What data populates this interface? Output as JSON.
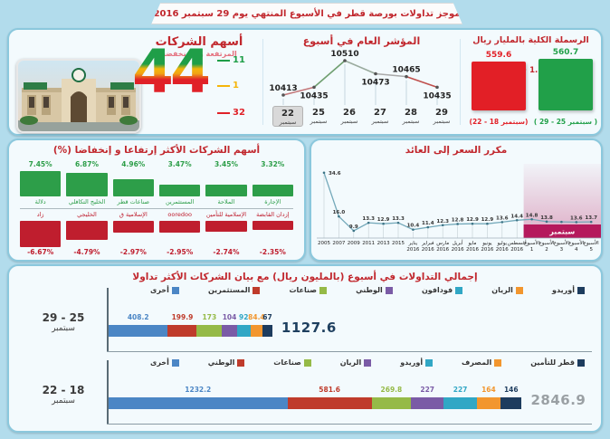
{
  "page_title": "موجز تداولات بورصة قطر في الأسبوع المنتهي يوم 29 سبتمبر 2016",
  "top_panel": {
    "shares": {
      "title": "أسهم الشركات",
      "subtitle": "المرتفعة و المنخفضة",
      "total": "44",
      "callouts": [
        {
          "label": "11",
          "color": "#1f9e48"
        },
        {
          "label": "1",
          "color": "#f5b50a"
        },
        {
          "label": "32",
          "color": "#e02128"
        }
      ]
    },
    "index": {
      "title": "المؤشر العام في أسبوع",
      "line_colors": [
        "#c4787a",
        "#6f9f70",
        "#9aab9e",
        "#a9a9a9",
        "#c0504d"
      ],
      "points": [
        {
          "day": "22",
          "month": "سبتمبر",
          "value": 10413,
          "label": "10413",
          "label_pos": "above",
          "highlight": true
        },
        {
          "day": "25",
          "month": "سبتمبر",
          "value": 10435,
          "label": "10435",
          "label_pos": "below",
          "highlight": false
        },
        {
          "day": "26",
          "month": "سبتمبر",
          "value": 10510,
          "label": "10510",
          "label_pos": "above",
          "highlight": false
        },
        {
          "day": "27",
          "month": "سبتمبر",
          "value": 10473,
          "label": "10473",
          "label_pos": "below",
          "highlight": false
        },
        {
          "day": "28",
          "month": "سبتمبر",
          "value": 10465,
          "label": "10465",
          "label_pos": "above",
          "highlight": false
        },
        {
          "day": "29",
          "month": "سبتمبر",
          "value": 10435,
          "label": "10435",
          "label_pos": "below",
          "highlight": false
        }
      ]
    },
    "capitalization": {
      "title": "الرسملة الكلية بالمليار ريال",
      "delta": "+ 1.11",
      "bars": [
        {
          "value": "559.6",
          "caption": "(22 - 18 سبتمبر)",
          "color": "#e21f26",
          "height": 54
        },
        {
          "value": "560.7",
          "caption": "( 29 - 25 سبتمبر )",
          "color": "#21a049",
          "height": 57
        }
      ]
    }
  },
  "movers": {
    "title": "أسهم الشركات الأكثر إرتفاعا و إنخفاضا (%)",
    "gain_color": "#2d9e49",
    "loss_color": "#bf1e2e",
    "gainers": [
      {
        "name": "دلالة",
        "value": "7.45%",
        "pct": 7.45
      },
      {
        "name": "الخليج التكافلي",
        "value": "6.87%",
        "pct": 6.87
      },
      {
        "name": "صناعات قطر",
        "value": "4.96%",
        "pct": 4.96
      },
      {
        "name": "المستثمرين",
        "value": "3.47%",
        "pct": 3.47
      },
      {
        "name": "الملاحة",
        "value": "3.45%",
        "pct": 3.45
      },
      {
        "name": "الإجارة",
        "value": "3.32%",
        "pct": 3.32
      }
    ],
    "losers": [
      {
        "name": "زاد",
        "value": "-6.67%",
        "pct": -6.67
      },
      {
        "name": "الخليجي",
        "value": "-4.79%",
        "pct": -4.79
      },
      {
        "name": "الإسلامية ق",
        "value": "-2.97%",
        "pct": -2.97
      },
      {
        "name": "ooredoo",
        "value": "-2.95%",
        "pct": -2.95
      },
      {
        "name": "الإسلامية للتأمين",
        "value": "-2.74%",
        "pct": -2.74
      },
      {
        "name": "إزدان القابضة",
        "value": "-2.35%",
        "pct": -2.35
      }
    ]
  },
  "pe": {
    "title": "مكرر السعر إلى العائد",
    "band_label": "سبتمبر",
    "band_color": "#b5195c",
    "band_start_index": 14,
    "points": [
      {
        "l1": "2005",
        "l2": "",
        "value": 34.6,
        "label": "34.6"
      },
      {
        "l1": "2007",
        "l2": "",
        "value": 16.0,
        "label": "16.0"
      },
      {
        "l1": "2009",
        "l2": "",
        "value": 9.9,
        "label": "9.9"
      },
      {
        "l1": "2011",
        "l2": "",
        "value": 13.3,
        "label": "13.3"
      },
      {
        "l1": "2013",
        "l2": "",
        "value": 12.9,
        "label": "12.9"
      },
      {
        "l1": "2015",
        "l2": "",
        "value": 13.3,
        "label": "13.3"
      },
      {
        "l1": "يناير",
        "l2": "2016",
        "value": 10.4,
        "label": "10.4"
      },
      {
        "l1": "فبراير",
        "l2": "2016",
        "value": 11.4,
        "label": "11.4"
      },
      {
        "l1": "مارس",
        "l2": "2016",
        "value": 12.3,
        "label": "12.3"
      },
      {
        "l1": "أبريل",
        "l2": "2016",
        "value": 12.8,
        "label": "12.8"
      },
      {
        "l1": "مايو",
        "l2": "2016",
        "value": 12.9,
        "label": "12.9"
      },
      {
        "l1": "يونيو",
        "l2": "2016",
        "value": 12.9,
        "label": "12.9"
      },
      {
        "l1": "يوليو",
        "l2": "2016",
        "value": 13.6,
        "label": "13.6"
      },
      {
        "l1": "أغسطس",
        "l2": "2016",
        "value": 14.4,
        "label": "14.4"
      },
      {
        "l1": "الأسبوع",
        "l2": "1",
        "value": 14.8,
        "label": "14.8"
      },
      {
        "l1": "الأسبوع",
        "l2": "2",
        "value": 13.8,
        "label": "13.8"
      },
      {
        "l1": "الأسبوع",
        "l2": "3",
        "value": 13.7,
        "label": ""
      },
      {
        "l1": "الأسبوع",
        "l2": "4",
        "value": 13.6,
        "label": "13.6"
      },
      {
        "l1": "الأسبوع",
        "l2": "5",
        "value": 13.7,
        "label": "13.7"
      }
    ]
  },
  "turnover": {
    "title": "إجمالي التداولات في أسبوع (بالمليون ريال) مع بيان الشركات الأكثر تداولا",
    "rows": [
      {
        "range": "29 - 25",
        "month": "سبتمبر",
        "total": "1127.6",
        "total_color": "#1e3f5f",
        "segments": [
          {
            "name": "أخرى",
            "value": "408.2",
            "num": 408.2,
            "color": "#4b86c5"
          },
          {
            "name": "المستثمرين",
            "value": "199.9",
            "num": 199.9,
            "color": "#bf3b2b"
          },
          {
            "name": "صناعات",
            "value": "173",
            "num": 173,
            "color": "#95ba47"
          },
          {
            "name": "الوطني",
            "value": "104",
            "num": 104,
            "color": "#7a5ba6"
          },
          {
            "name": "فودافون",
            "value": "92",
            "num": 92,
            "color": "#31a7c5"
          },
          {
            "name": "الريان",
            "value": "84.4",
            "num": 84.4,
            "color": "#f2962e"
          },
          {
            "name": "أوريدو",
            "value": "67",
            "num": 67,
            "color": "#1d3c5e"
          }
        ]
      },
      {
        "range": "22 - 18",
        "month": "سبتمبر",
        "total": "2846.9",
        "total_color": "#9aa0a4",
        "segments": [
          {
            "name": "أخرى",
            "value": "1232.2",
            "num": 1232.2,
            "color": "#4b86c5"
          },
          {
            "name": "الوطني",
            "value": "581.6",
            "num": 581.6,
            "color": "#bf3b2b"
          },
          {
            "name": "صناعات",
            "value": "269.8",
            "num": 269.8,
            "color": "#95ba47"
          },
          {
            "name": "الريان",
            "value": "227",
            "num": 227,
            "color": "#7a5ba6"
          },
          {
            "name": "أوريدو",
            "value": "227",
            "num": 227,
            "color": "#31a7c5"
          },
          {
            "name": "المصرف",
            "value": "164",
            "num": 164,
            "color": "#f2962e"
          },
          {
            "name": "قطر للتأمين",
            "value": "146",
            "num": 146,
            "color": "#1d3c5e"
          }
        ]
      }
    ]
  },
  "chart_data": [
    {
      "type": "line",
      "title": "المؤشر العام في أسبوع",
      "categories": [
        "22 سبتمبر",
        "25 سبتمبر",
        "26 سبتمبر",
        "27 سبتمبر",
        "28 سبتمبر",
        "29 سبتمبر"
      ],
      "values": [
        10413,
        10435,
        10510,
        10473,
        10465,
        10435
      ],
      "ylim": [
        10400,
        10520
      ],
      "grid": "vertical droplines",
      "legend": "none"
    },
    {
      "type": "bar",
      "title": "الرسملة الكلية بالمليار ريال",
      "categories": [
        "22 - 18 سبتمبر",
        "29 - 25 سبتمبر"
      ],
      "values": [
        559.6,
        560.7
      ],
      "colors": [
        "#e21f26",
        "#21a049"
      ],
      "annotation": "+ 1.11"
    },
    {
      "type": "bar",
      "title": "أسهم الشركات الأكثر إرتفاعا و إنخفاضا (%)",
      "categories": [
        "دلالة",
        "الخليج التكافلي",
        "صناعات قطر",
        "المستثمرين",
        "الملاحة",
        "الإجارة",
        "زاد",
        "الخليجي",
        "الإسلامية ق",
        "ooredoo",
        "الإسلامية للتأمين",
        "إزدان القابضة"
      ],
      "values": [
        7.45,
        6.87,
        4.96,
        3.47,
        3.45,
        3.32,
        -6.67,
        -4.79,
        -2.97,
        -2.95,
        -2.74,
        -2.35
      ],
      "ylabel": "%"
    },
    {
      "type": "line",
      "title": "مكرر السعر إلى العائد",
      "categories": [
        "2005",
        "2007",
        "2009",
        "2011",
        "2013",
        "2015",
        "يناير 2016",
        "فبراير 2016",
        "مارس 2016",
        "أبريل 2016",
        "مايو 2016",
        "يونيو 2016",
        "يوليو 2016",
        "أغسطس 2016",
        "الأسبوع 1",
        "الأسبوع 2",
        "الأسبوع 3",
        "الأسبوع 4",
        "الأسبوع 5"
      ],
      "values": [
        34.6,
        16.0,
        9.9,
        13.3,
        12.9,
        13.3,
        10.4,
        11.4,
        12.3,
        12.8,
        12.9,
        12.9,
        13.6,
        14.4,
        14.8,
        13.8,
        13.7,
        13.6,
        13.7
      ],
      "highlight_region": {
        "label": "سبتمبر",
        "from": "الأسبوع 1",
        "to": "الأسبوع 5"
      }
    },
    {
      "type": "bar",
      "title": "إجمالي التداولات في أسبوع (بالمليون ريال) مع بيان الشركات الأكثر تداولا",
      "orientation": "horizontal-stacked",
      "series": [
        {
          "name": "29 - 25 سبتمبر",
          "total": 1127.6,
          "categories": [
            "أخرى",
            "المستثمرين",
            "صناعات",
            "الوطني",
            "فودافون",
            "الريان",
            "أوريدو"
          ],
          "values": [
            408.2,
            199.9,
            173,
            104,
            92,
            84.4,
            67
          ]
        },
        {
          "name": "22 - 18 سبتمبر",
          "total": 2846.9,
          "categories": [
            "أخرى",
            "الوطني",
            "صناعات",
            "الريان",
            "أوريدو",
            "المصرف",
            "قطر للتأمين"
          ],
          "values": [
            1232.2,
            581.6,
            269.8,
            227,
            227,
            164,
            146
          ]
        }
      ]
    }
  ],
  "totals_decoration": {
    "shares_up_down_unchanged": [
      11,
      32,
      1
    ]
  }
}
